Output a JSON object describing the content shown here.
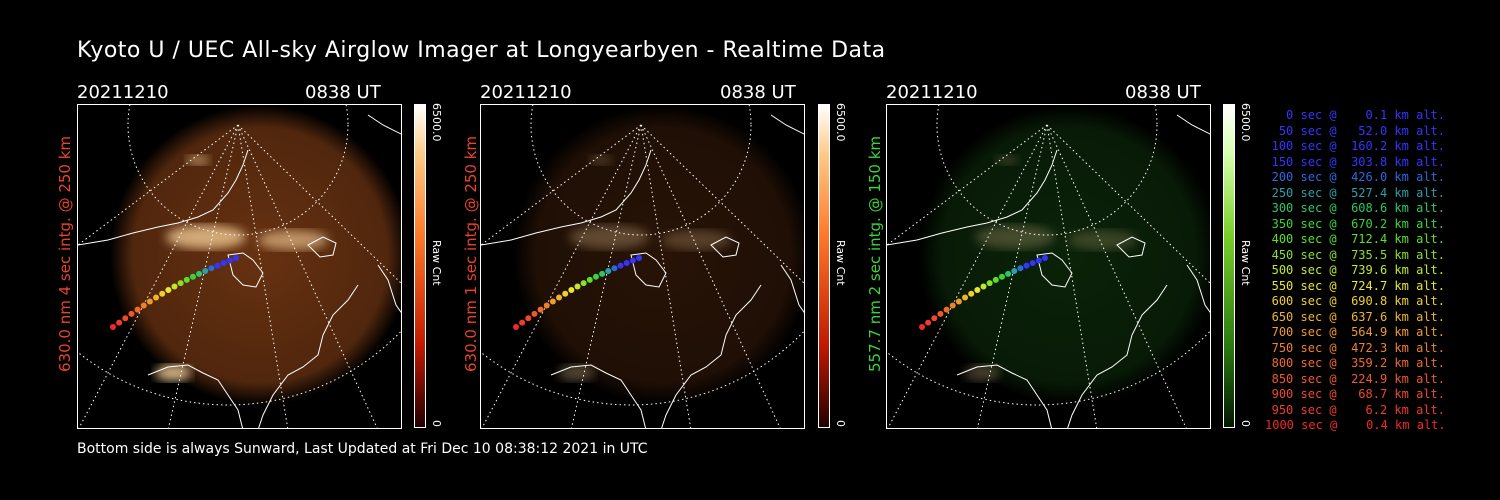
{
  "title": "Kyoto U / UEC All-sky Airglow Imager at Longyearbyen - Realtime Data",
  "panels": [
    {
      "date": "20211210",
      "time": "0838 UT",
      "label": "630.0 nm 4 sec intg. @ 250 km",
      "color": "#e8442a",
      "cbar_max": "6500.0",
      "cbar_min": "0",
      "cbar_unit": "Raw Cnt",
      "tint": "#ff7a2a",
      "intensity": 0.9
    },
    {
      "date": "20211210",
      "time": "0838 UT",
      "label": "630.0 nm 1 sec intg. @ 250 km",
      "color": "#e8442a",
      "cbar_max": "6500.0",
      "cbar_min": "0",
      "cbar_unit": "Raw Cnt",
      "tint": "#ff7a2a",
      "intensity": 0.35
    },
    {
      "date": "20211210",
      "time": "0838 UT",
      "label": "557.7 nm 2 sec intg. @ 150 km",
      "color": "#3ad43a",
      "cbar_max": "6500.0",
      "cbar_min": "0",
      "cbar_unit": "Raw Cnt",
      "tint": "#4cff3c",
      "intensity": 0.3
    }
  ],
  "footer": "Bottom side is always Sunward, Last Updated at Fri Dec 10 08:38:12 2021 in UTC",
  "legend": [
    {
      "text": "0 sec @    0.1 km alt.",
      "color": "#3434ff"
    },
    {
      "text": "50 sec @   52.0 km alt.",
      "color": "#3434ff"
    },
    {
      "text": "100 sec @  160.2 km alt.",
      "color": "#3434ff"
    },
    {
      "text": "150 sec @  303.8 km alt.",
      "color": "#3434ff"
    },
    {
      "text": "200 sec @  426.0 km alt.",
      "color": "#2a6ae0"
    },
    {
      "text": "250 sec @  527.4 km alt.",
      "color": "#2aa0a8"
    },
    {
      "text": "300 sec @  608.6 km alt.",
      "color": "#2ac86a"
    },
    {
      "text": "350 sec @  670.2 km alt.",
      "color": "#3ad43a"
    },
    {
      "text": "400 sec @  712.4 km alt.",
      "color": "#5ae02a"
    },
    {
      "text": "450 sec @  735.5 km alt.",
      "color": "#8ae02a"
    },
    {
      "text": "500 sec @  739.6 km alt.",
      "color": "#c0e82a"
    },
    {
      "text": "550 sec @  724.7 km alt.",
      "color": "#e8e82a"
    },
    {
      "text": "600 sec @  690.8 km alt.",
      "color": "#f0d02a"
    },
    {
      "text": "650 sec @  637.6 km alt.",
      "color": "#f0b42a"
    },
    {
      "text": "700 sec @  564.9 km alt.",
      "color": "#f09a2a"
    },
    {
      "text": "750 sec @  472.3 km alt.",
      "color": "#f0802a"
    },
    {
      "text": "800 sec @  359.2 km alt.",
      "color": "#f06a2a"
    },
    {
      "text": "850 sec @  224.9 km alt.",
      "color": "#f0582a"
    },
    {
      "text": "900 sec @   68.7 km alt.",
      "color": "#f0482a"
    },
    {
      "text": "950 sec @    6.2 km alt.",
      "color": "#f03a2a"
    },
    {
      "text": "1000 sec @    0.4 km alt.",
      "color": "#f02a2a"
    }
  ]
}
